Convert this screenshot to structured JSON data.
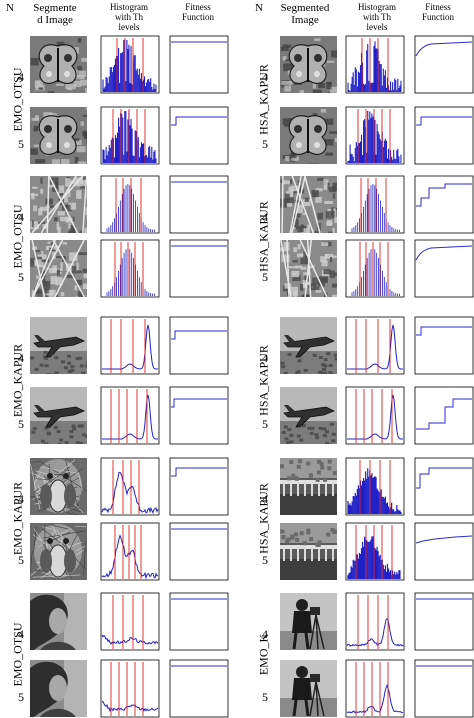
{
  "headers": {
    "left": {
      "n": "N",
      "segmented": "Segmente\nd Image",
      "histogram": "Histogram\nwith Th\nlevels",
      "fitness": "Fitness\nFunction"
    },
    "right": {
      "n": "N",
      "segmented": "Segmented\nImage",
      "histogram": "Histogram\nwith Th\nlevels",
      "fitness": "Fitness\nFunction"
    }
  },
  "left_groups": [
    {
      "method": "EMO_OTSU",
      "image": "butterfly",
      "rows": [
        {
          "n": "4",
          "hist": "butterfly",
          "fit": "flat-high"
        },
        {
          "n": "5",
          "hist": "butterfly",
          "fit": "step-early"
        }
      ]
    },
    {
      "method": "EMO_OTSU",
      "image": "map",
      "rows": [
        {
          "n": "4",
          "hist": "comb",
          "fit": "flat-high"
        },
        {
          "n": "5",
          "hist": "comb",
          "fit": "flat-high"
        }
      ]
    },
    {
      "method": "EMO_KAPUR",
      "image": "jet",
      "rows": [
        {
          "n": "4",
          "hist": "jet",
          "fit": "step-mid"
        },
        {
          "n": "5",
          "hist": "jet",
          "fit": "step-mid2"
        }
      ]
    },
    {
      "method": "EMO_KAPUR",
      "image": "baboon",
      "rows": [
        {
          "n": "4",
          "hist": "baboon",
          "fit": "step-early"
        },
        {
          "n": "5",
          "hist": "baboon",
          "fit": "flat-high"
        }
      ]
    },
    {
      "method": "EMO_OTSU",
      "image": "lena",
      "rows": [
        {
          "n": "4",
          "hist": "lena",
          "fit": "flat-high"
        },
        {
          "n": "5",
          "hist": "lena",
          "fit": "flat-high"
        }
      ]
    }
  ],
  "right_groups": [
    {
      "method": "HSA_KAPUR",
      "image": "butterfly",
      "rows": [
        {
          "n": "4",
          "hist": "butterfly",
          "fit": "rise-curve"
        },
        {
          "n": "5",
          "hist": "butterfly",
          "fit": "step-early"
        }
      ]
    },
    {
      "method": "HSA_KAPUR",
      "image": "map",
      "rows": [
        {
          "n": "4",
          "hist": "comb",
          "fit": "stairs"
        },
        {
          "n": "5",
          "hist": "comb",
          "fit": "rise-curve"
        }
      ]
    },
    {
      "method": "HSA_KAPUR",
      "image": "jet",
      "rows": [
        {
          "n": "4",
          "hist": "jet",
          "fit": "step-early"
        },
        {
          "n": "5",
          "hist": "jet",
          "fit": "stairs2"
        }
      ]
    },
    {
      "method": "HSA_KAPUR",
      "image": "pier",
      "rows": [
        {
          "n": "4",
          "hist": "pier",
          "fit": "stairs3"
        },
        {
          "n": "5",
          "hist": "pier",
          "fit": "slow-rise"
        }
      ]
    },
    {
      "method": "EMO_K",
      "image": "cameraman",
      "rows": [
        {
          "n": "4",
          "hist": "camera",
          "fit": "flat-high"
        },
        {
          "n": "5",
          "hist": "camera",
          "fit": "flat-high"
        }
      ]
    }
  ],
  "colors": {
    "hist": "#2020c8",
    "threshold": "#e02020",
    "fitness": "#2a2ad0",
    "axis": "#000000"
  }
}
